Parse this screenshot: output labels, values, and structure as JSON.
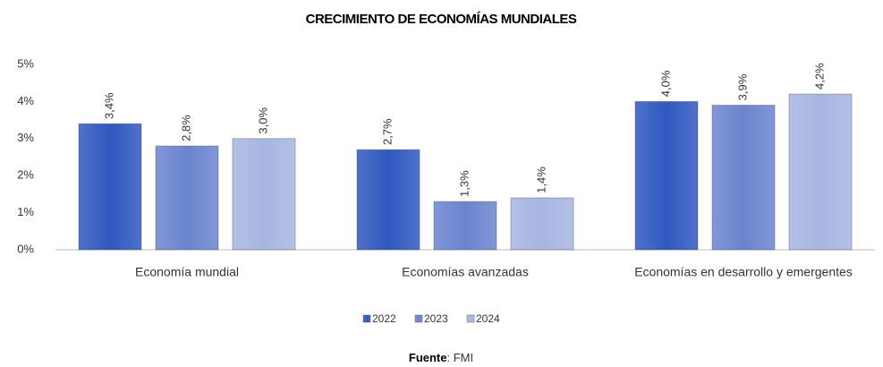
{
  "chart_data": {
    "type": "bar",
    "title": "CRECIMIENTO DE ECONOMÍAS MUNDIALES",
    "categories": [
      "Economía mundial",
      "Economías avanzadas",
      "Economías en desarrollo y emergentes"
    ],
    "series": [
      {
        "name": "2022",
        "color": "#2f58c0",
        "values": [
          3.4,
          2.7,
          4.0
        ],
        "value_labels": [
          "3,4%",
          "2,7%",
          "4,0%"
        ]
      },
      {
        "name": "2023",
        "color": "#6b84cf",
        "values": [
          2.8,
          1.3,
          3.9
        ],
        "value_labels": [
          "2,8%",
          "1,3%",
          "3,9%"
        ]
      },
      {
        "name": "2024",
        "color": "#a7b5e1",
        "values": [
          3.0,
          1.4,
          4.2
        ],
        "value_labels": [
          "3,0%",
          "1,4%",
          "4,2%"
        ]
      }
    ],
    "ylim": [
      0,
      5
    ],
    "yticks": [
      {
        "value": 0,
        "label": "0%"
      },
      {
        "value": 1,
        "label": "1%"
      },
      {
        "value": 2,
        "label": "2%"
      },
      {
        "value": 3,
        "label": "3%"
      },
      {
        "value": 4,
        "label": "4%"
      },
      {
        "value": 5,
        "label": "5%"
      }
    ],
    "legend": "bottom",
    "source_label": "Fuente",
    "source": ": FMI"
  }
}
